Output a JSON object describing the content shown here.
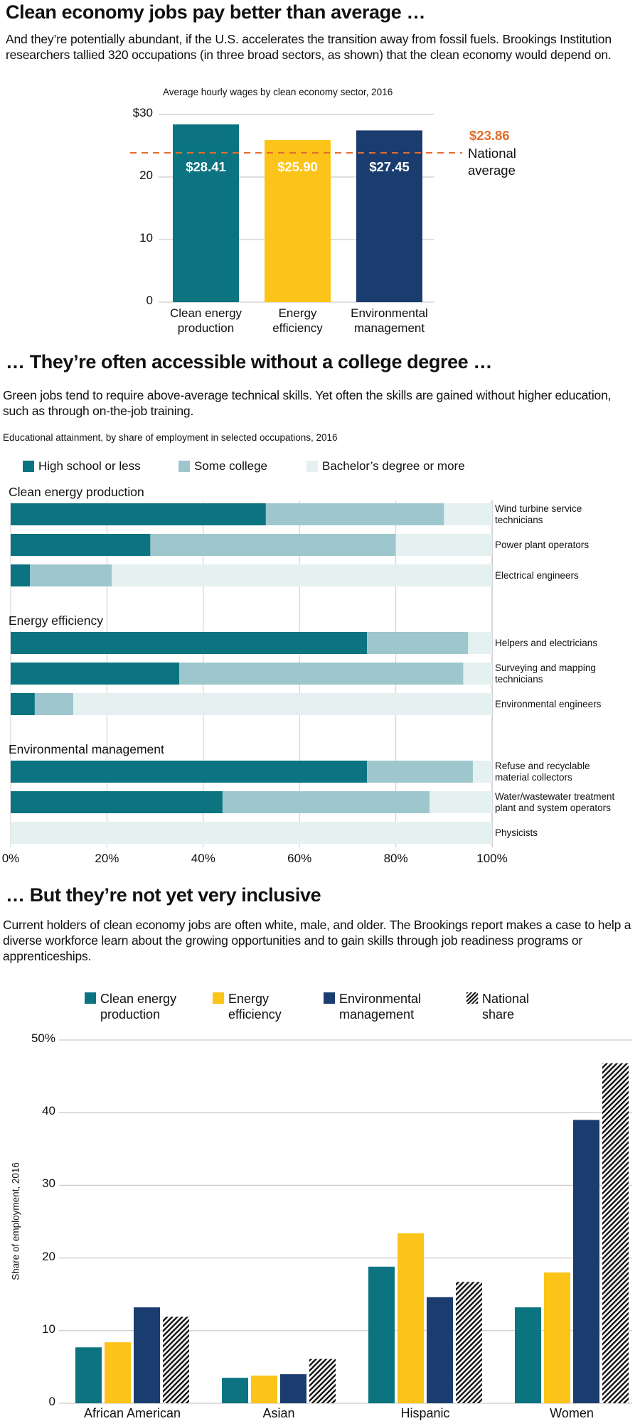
{
  "colors": {
    "teal": "#0b7480",
    "yellow": "#fcc419",
    "navy": "#1b3c6e",
    "orange": "#e36d2a",
    "some_college": "#9dc7cc",
    "bachelors": "#e5f0f1",
    "grid": "#cccccc"
  },
  "section1": {
    "title": "Clean economy jobs pay better than average …",
    "dek": "And they’re potentially abundant, if the U.S. accelerates the transition away from fossil fuels. Brookings Institution researchers tallied 320 occupations (in three broad sectors, as shown) that the clean economy would depend on."
  },
  "section2": {
    "title": "… They’re often accessible without a college degree …",
    "dek": "Green jobs tend to require above-average technical skills. Yet often the skills are gained without higher education, such as through on-the-job training."
  },
  "section3": {
    "title": "… But they’re not yet very inclusive",
    "dek": "Current holders of clean economy jobs are often white, male, and older. The Brookings report makes a case to help a diverse workforce learn about the growing opportunities and to gain skills through job readiness programs or apprenticeships."
  },
  "chart_data": [
    {
      "type": "bar",
      "title": "Average hourly wages by clean economy sector, 2016",
      "categories": [
        "Clean energy production",
        "Energy efficiency",
        "Environmental management"
      ],
      "category_lines": [
        [
          "Clean energy",
          "production"
        ],
        [
          "Energy",
          "efficiency"
        ],
        [
          "Environmental",
          "management"
        ]
      ],
      "values": [
        28.41,
        25.9,
        27.45
      ],
      "value_labels": [
        "$28.41",
        "$25.90",
        "$27.45"
      ],
      "bar_colors": [
        "teal",
        "yellow",
        "navy"
      ],
      "yticks": [
        0,
        10,
        20,
        30
      ],
      "ytick_labels": [
        "0",
        "10",
        "20",
        "$30"
      ],
      "ylim": [
        0,
        30
      ],
      "grid": true,
      "reference_line": {
        "value": 23.86,
        "label_value": "$23.86",
        "label_lines": [
          "National",
          "average"
        ],
        "style": "dashed"
      },
      "xlabel": "",
      "ylabel": ""
    },
    {
      "type": "bar",
      "orientation": "horizontal-stacked",
      "title": "Educational attainment, by share of employment in selected occupations, 2016",
      "legend": [
        {
          "name": "High school or less",
          "color": "teal"
        },
        {
          "name": "Some college",
          "color": "some_college"
        },
        {
          "name": "Bachelor’s degree or more",
          "color": "bachelors"
        }
      ],
      "legend_position": "top",
      "groups": [
        {
          "name": "Clean energy production",
          "occupations": [
            {
              "name": "Wind turbine service technicians",
              "lines": [
                "Wind turbine service",
                "technicians"
              ],
              "high_school_or_less": 53,
              "some_college": 37,
              "bachelors_or_more": 10
            },
            {
              "name": "Power plant operators",
              "lines": [
                "Power plant operators"
              ],
              "high_school_or_less": 29,
              "some_college": 51,
              "bachelors_or_more": 20
            },
            {
              "name": "Electrical engineers",
              "lines": [
                "Electrical engineers"
              ],
              "high_school_or_less": 4,
              "some_college": 17,
              "bachelors_or_more": 79
            }
          ]
        },
        {
          "name": "Energy efficiency",
          "occupations": [
            {
              "name": "Helpers and electricians",
              "lines": [
                "Helpers and electricians"
              ],
              "high_school_or_less": 74,
              "some_college": 21,
              "bachelors_or_more": 5
            },
            {
              "name": "Surveying and mapping technicians",
              "lines": [
                "Surveying and mapping",
                "technicians"
              ],
              "high_school_or_less": 35,
              "some_college": 59,
              "bachelors_or_more": 6
            },
            {
              "name": "Environmental engineers",
              "lines": [
                "Environmental engineers"
              ],
              "high_school_or_less": 5,
              "some_college": 8,
              "bachelors_or_more": 87
            }
          ]
        },
        {
          "name": "Environmental management",
          "occupations": [
            {
              "name": "Refuse and recyclable material collectors",
              "lines": [
                "Refuse and recyclable",
                "material collectors"
              ],
              "high_school_or_less": 74,
              "some_college": 22,
              "bachelors_or_more": 4
            },
            {
              "name": "Water/wastewater treatment plant and system operators",
              "lines": [
                "Water/wastewater treatment",
                "plant and system operators"
              ],
              "high_school_or_less": 44,
              "some_college": 43,
              "bachelors_or_more": 13
            },
            {
              "name": "Physicists",
              "lines": [
                "Physicists"
              ],
              "high_school_or_less": 0,
              "some_college": 0,
              "bachelors_or_more": 100
            }
          ]
        }
      ],
      "xticks": [
        0,
        20,
        40,
        60,
        80,
        100
      ],
      "xtick_labels": [
        "0%",
        "20%",
        "40%",
        "60%",
        "80%",
        "100%"
      ],
      "xlim": [
        0,
        100
      ],
      "grid": true
    },
    {
      "type": "bar",
      "orientation": "vertical-grouped",
      "title": "",
      "ylabel": "Share of employment, 2016",
      "categories": [
        "African American",
        "Asian",
        "Hispanic",
        "Women"
      ],
      "series": [
        {
          "name": "Clean energy production",
          "lines": [
            "Clean energy",
            "production"
          ],
          "color": "teal",
          "values": [
            7.7,
            3.5,
            18.8,
            13.2
          ]
        },
        {
          "name": "Energy efficiency",
          "lines": [
            "Energy",
            "efficiency"
          ],
          "color": "yellow",
          "values": [
            8.4,
            3.8,
            23.4,
            18.0
          ]
        },
        {
          "name": "Environmental management",
          "lines": [
            "Environmental",
            "management"
          ],
          "color": "navy",
          "values": [
            13.2,
            4.0,
            14.6,
            39.0
          ]
        },
        {
          "name": "National share",
          "lines": [
            "National",
            "share"
          ],
          "color": "hatch",
          "values": [
            11.9,
            6.1,
            16.7,
            46.8
          ]
        }
      ],
      "yticks": [
        0,
        10,
        20,
        30,
        40,
        50
      ],
      "ytick_labels": [
        "0",
        "10",
        "20",
        "30",
        "40",
        "50%"
      ],
      "ylim": [
        0,
        50
      ],
      "legend_position": "top",
      "grid": true
    }
  ]
}
